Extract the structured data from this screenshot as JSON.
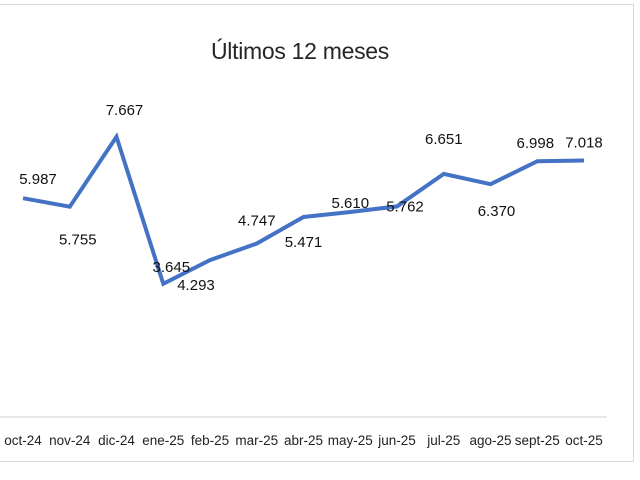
{
  "chart_data": {
    "type": "line",
    "title": "Últimos 12 meses",
    "xlabel": "",
    "ylabel": "",
    "categories": [
      "oct-24",
      "nov-24",
      "dic-24",
      "ene-25",
      "feb-25",
      "mar-25",
      "abr-25",
      "may-25",
      "jun-25",
      "jul-25",
      "ago-25",
      "sept-25",
      "oct-25"
    ],
    "series": [
      {
        "name": "Últimos 12 meses",
        "values": [
          5.987,
          5.755,
          7.667,
          3.645,
          4.293,
          4.747,
          5.471,
          5.61,
          5.762,
          6.651,
          6.37,
          6.998,
          7.018
        ],
        "labels": [
          "5.987",
          "5.755",
          "7.667",
          "3.645",
          "4.293",
          "4.747",
          "5.471",
          "5.610",
          "5.762",
          "6.651",
          "6.370",
          "6.998",
          "7.018"
        ],
        "color": "#4472C4"
      }
    ],
    "ylim": [
      0,
      9
    ],
    "grid": false,
    "legend": "none",
    "y_axis_visible": false
  }
}
